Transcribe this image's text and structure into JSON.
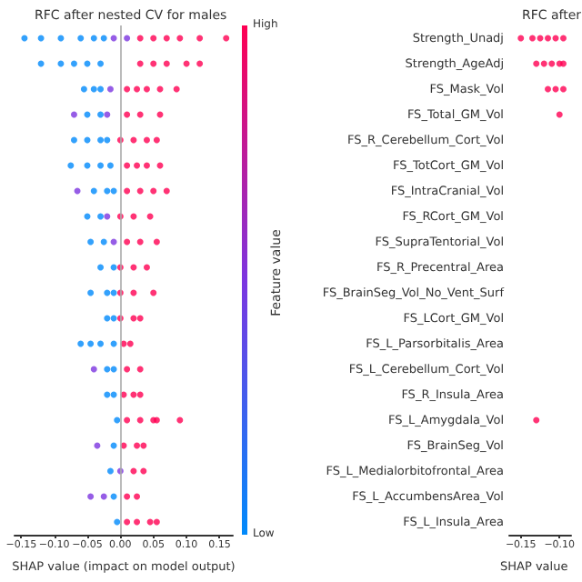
{
  "chart_data": [
    {
      "type": "scatter",
      "title": "RFC after nested CV for males",
      "xlabel": "SHAP value (impact on model output)",
      "clabel": "Feature value",
      "orientation": "horizontal",
      "annotations": [
        "High",
        "Low"
      ],
      "categories": [
        null,
        null,
        null,
        null,
        null,
        null,
        null,
        null,
        null,
        null,
        null,
        null,
        null,
        null,
        null,
        null,
        null,
        null,
        null,
        null
      ],
      "xlim": [
        -0.16,
        0.17
      ],
      "xticks": [
        {
          "value": -0.15,
          "label": "−0.15"
        },
        {
          "value": -0.1,
          "label": "−0.10"
        },
        {
          "value": -0.05,
          "label": "−0.05"
        },
        {
          "value": 0,
          "label": "0.00"
        },
        {
          "value": 0.05,
          "label": "0.05"
        },
        {
          "value": 0.1,
          "label": "0.10"
        },
        {
          "value": 0.15,
          "label": "0.15"
        }
      ],
      "ref_lines": [
        {
          "axis": "x",
          "value": 0,
          "color": "#aaaaaa"
        }
      ],
      "marker": "circle",
      "series": [
        {
          "values": [
            -0.145,
            -0.12,
            -0.055,
            -0.07,
            -0.07,
            -0.075,
            -0.065,
            -0.05,
            -0.045,
            -0.03,
            -0.045,
            -0.02,
            -0.06,
            -0.04,
            -0.02,
            -0.005,
            -0.035,
            -0.015,
            -0.045,
            -0.005
          ],
          "colors": [
            "#008afb",
            "#008afb",
            "#008afb",
            "#7c35e0",
            "#008afb",
            "#008afb",
            "#7c35e0",
            "#008afb",
            "#008afb",
            "#008afb",
            "#008afb",
            "#008afb",
            "#008afb",
            "#7c35e0",
            "#008afb",
            "#008afb",
            "#7c35e0",
            "#008afb",
            "#7c35e0",
            "#008afb"
          ]
        },
        {
          "values": [
            -0.12,
            -0.09,
            -0.04,
            -0.05,
            -0.05,
            -0.05,
            -0.04,
            -0.03,
            -0.025,
            -0.01,
            -0.02,
            -0.01,
            -0.045,
            -0.02,
            -0.01,
            0.01,
            -0.01,
            0.0,
            -0.025,
            0.01
          ],
          "colors": [
            "#008afb",
            "#008afb",
            "#008afb",
            "#008afb",
            "#008afb",
            "#008afb",
            "#008afb",
            "#008afb",
            "#008afb",
            "#008afb",
            "#008afb",
            "#008afb",
            "#008afb",
            "#008afb",
            "#008afb",
            "#ff0052",
            "#008afb",
            "#7c35e0",
            "#7c35e0",
            "#ff0052"
          ]
        },
        {
          "values": [
            -0.09,
            -0.07,
            -0.03,
            -0.03,
            -0.03,
            -0.03,
            -0.02,
            -0.02,
            -0.01,
            0.0,
            -0.01,
            0.0,
            -0.03,
            -0.01,
            0.005,
            0.03,
            0.005,
            0.02,
            -0.01,
            0.025
          ],
          "colors": [
            "#008afb",
            "#008afb",
            "#008afb",
            "#008afb",
            "#008afb",
            "#008afb",
            "#008afb",
            "#7c35e0",
            "#7c35e0",
            "#ff0052",
            "#008afb",
            "#ff0052",
            "#008afb",
            "#008afb",
            "#ff0052",
            "#ff0052",
            "#ff0052",
            "#ff0052",
            "#008afb",
            "#ff0052"
          ]
        },
        {
          "values": [
            -0.06,
            -0.05,
            -0.015,
            -0.02,
            -0.02,
            -0.015,
            -0.01,
            0.0,
            0.01,
            0.02,
            0.0,
            0.02,
            -0.01,
            0.01,
            0.02,
            0.05,
            0.025,
            0.035,
            0.01,
            0.045
          ],
          "colors": [
            "#008afb",
            "#008afb",
            "#7c35e0",
            "#7c35e0",
            "#008afb",
            "#008afb",
            "#008afb",
            "#ff0052",
            "#ff0052",
            "#ff0052",
            "#ff0052",
            "#ff0052",
            "#008afb",
            "#ff0052",
            "#ff0052",
            "#ff0052",
            "#ff0052",
            "#ff0052",
            "#ff0052",
            "#ff0052"
          ]
        },
        {
          "values": [
            -0.04,
            -0.03,
            0.01,
            0.01,
            0.0,
            0.01,
            0.01,
            0.02,
            0.03,
            0.04,
            0.02,
            0.03,
            0.005,
            0.03,
            0.03,
            0.055,
            0.035,
            null,
            0.025,
            0.055
          ],
          "colors": [
            "#008afb",
            "#008afb",
            "#ff0052",
            "#ff0052",
            "#ff0052",
            "#ff0052",
            "#ff0052",
            "#ff0052",
            "#ff0052",
            "#ff0052",
            "#ff0052",
            "#ff0052",
            "#ff0052",
            "#ff0052",
            "#ff0052",
            "#ff0052",
            "#ff0052",
            null,
            "#ff0052",
            "#ff0052"
          ]
        },
        {
          "values": [
            -0.025,
            0.03,
            0.025,
            0.03,
            0.02,
            0.025,
            0.03,
            0.045,
            0.055,
            null,
            0.05,
            null,
            0.015,
            null,
            null,
            0.09,
            null,
            null,
            null,
            null
          ],
          "colors": [
            "#008afb",
            "#ff0052",
            "#ff0052",
            "#ff0052",
            "#ff0052",
            "#ff0052",
            "#ff0052",
            "#ff0052",
            "#ff0052",
            null,
            "#ff0052",
            null,
            "#ff0052",
            null,
            null,
            "#ff0052",
            null,
            null,
            null,
            null
          ]
        },
        {
          "values": [
            -0.01,
            0.05,
            0.04,
            0.06,
            0.04,
            0.04,
            0.05,
            null,
            null,
            null,
            null,
            null,
            null,
            null,
            null,
            null,
            null,
            null,
            null,
            null
          ],
          "colors": [
            "#7c35e0",
            "#ff0052",
            "#ff0052",
            "#ff0052",
            "#ff0052",
            "#ff0052",
            "#ff0052",
            null,
            null,
            null,
            null,
            null,
            null,
            null,
            null,
            null,
            null,
            null,
            null,
            null
          ]
        },
        {
          "values": [
            0.01,
            0.07,
            0.06,
            null,
            0.055,
            0.06,
            0.07,
            null,
            null,
            null,
            null,
            null,
            null,
            null,
            null,
            null,
            null,
            null,
            null,
            null
          ],
          "colors": [
            "#7c35e0",
            "#ff0052",
            "#ff0052",
            null,
            "#ff0052",
            "#ff0052",
            "#ff0052",
            null,
            null,
            null,
            null,
            null,
            null,
            null,
            null,
            null,
            null,
            null,
            null,
            null
          ]
        },
        {
          "values": [
            0.03,
            0.1,
            0.085,
            null,
            null,
            null,
            null,
            null,
            null,
            null,
            null,
            null,
            null,
            null,
            null,
            null,
            null,
            null,
            null,
            null
          ],
          "colors": [
            "#ff0052",
            "#ff0052",
            "#ff0052",
            null,
            null,
            null,
            null,
            null,
            null,
            null,
            null,
            null,
            null,
            null,
            null,
            null,
            null,
            null,
            null,
            null
          ]
        },
        {
          "values": [
            0.05,
            0.12,
            null,
            null,
            null,
            null,
            null,
            null,
            null,
            null,
            null,
            null,
            null,
            null,
            null,
            null,
            null,
            null,
            null,
            null
          ],
          "colors": [
            "#ff0052",
            "#ff0052",
            null,
            null,
            null,
            null,
            null,
            null,
            null,
            null,
            null,
            null,
            null,
            null,
            null,
            null,
            null,
            null,
            null,
            null
          ]
        },
        {
          "values": [
            0.07,
            null,
            null,
            null,
            null,
            null,
            null,
            null,
            null,
            null,
            null,
            null,
            null,
            null,
            null,
            null,
            null,
            null,
            null,
            null
          ],
          "colors": [
            "#ff0052",
            null,
            null,
            null,
            null,
            null,
            null,
            null,
            null,
            null,
            null,
            null,
            null,
            null,
            null,
            null,
            null,
            null,
            null,
            null
          ]
        },
        {
          "values": [
            0.09,
            null,
            null,
            null,
            null,
            null,
            null,
            null,
            null,
            null,
            null,
            null,
            null,
            null,
            null,
            null,
            null,
            null,
            null,
            null
          ],
          "colors": [
            "#ff0052",
            null,
            null,
            null,
            null,
            null,
            null,
            null,
            null,
            null,
            null,
            null,
            null,
            null,
            null,
            null,
            null,
            null,
            null,
            null
          ]
        },
        {
          "values": [
            0.12,
            null,
            null,
            null,
            null,
            null,
            null,
            null,
            null,
            null,
            null,
            null,
            null,
            null,
            null,
            null,
            null,
            null,
            null,
            null
          ],
          "colors": [
            "#ff0052",
            null,
            null,
            null,
            null,
            null,
            null,
            null,
            null,
            null,
            null,
            null,
            null,
            null,
            null,
            null,
            null,
            null,
            null,
            null
          ]
        },
        {
          "values": [
            0.16,
            null,
            null,
            null,
            null,
            null,
            null,
            null,
            null,
            null,
            null,
            null,
            null,
            null,
            null,
            null,
            null,
            null,
            null,
            null
          ],
          "colors": [
            "#ff0052",
            null,
            null,
            null,
            null,
            null,
            null,
            null,
            null,
            null,
            null,
            null,
            null,
            null,
            null,
            null,
            null,
            null,
            null,
            null
          ]
        }
      ]
    },
    {
      "type": "scatter",
      "title": "RFC after",
      "xlabel": "SHAP value",
      "orientation": "horizontal",
      "categories": [
        "Strength_Unadj",
        "Strength_AgeAdj",
        "FS_Mask_Vol",
        "FS_Total_GM_Vol",
        "FS_R_Cerebellum_Cort_Vol",
        "FS_TotCort_GM_Vol",
        "FS_IntraCranial_Vol",
        "FS_RCort_GM_Vol",
        "FS_SupraTentorial_Vol",
        "FS_R_Precentral_Area",
        "FS_BrainSeg_Vol_No_Vent_Surf",
        "FS_LCort_GM_Vol",
        "FS_L_Parsorbitalis_Area",
        "FS_L_Cerebellum_Cort_Vol",
        "FS_R_Insula_Area",
        "FS_L_Amygdala_Vol",
        "FS_BrainSeg_Vol",
        "FS_L_Medialorbitofrontal_Area",
        "FS_L_AccumbensArea_Vol",
        "FS_L_Insula_Area"
      ],
      "xlim": [
        -0.165,
        -0.085
      ],
      "xticks": [
        {
          "value": -0.15,
          "label": "−0.15"
        },
        {
          "value": -0.1,
          "label": "−0.10"
        }
      ],
      "marker": "circle",
      "series": [
        {
          "color": "#ff0052",
          "x": [
            "Strength_Unadj",
            "Strength_Unadj",
            "Strength_Unadj",
            "Strength_Unadj",
            "Strength_Unadj",
            "Strength_Unadj",
            "Strength_AgeAdj",
            "Strength_AgeAdj",
            "Strength_AgeAdj",
            "Strength_AgeAdj",
            "Strength_AgeAdj",
            "FS_Mask_Vol",
            "FS_Mask_Vol",
            "FS_Mask_Vol",
            "FS_Total_GM_Vol",
            "FS_L_Amygdala_Vol"
          ],
          "values": [
            -0.15,
            -0.135,
            -0.125,
            -0.115,
            -0.105,
            -0.095,
            -0.13,
            -0.12,
            -0.11,
            -0.1,
            -0.095,
            -0.115,
            -0.105,
            -0.095,
            -0.1,
            -0.13
          ]
        }
      ]
    }
  ]
}
